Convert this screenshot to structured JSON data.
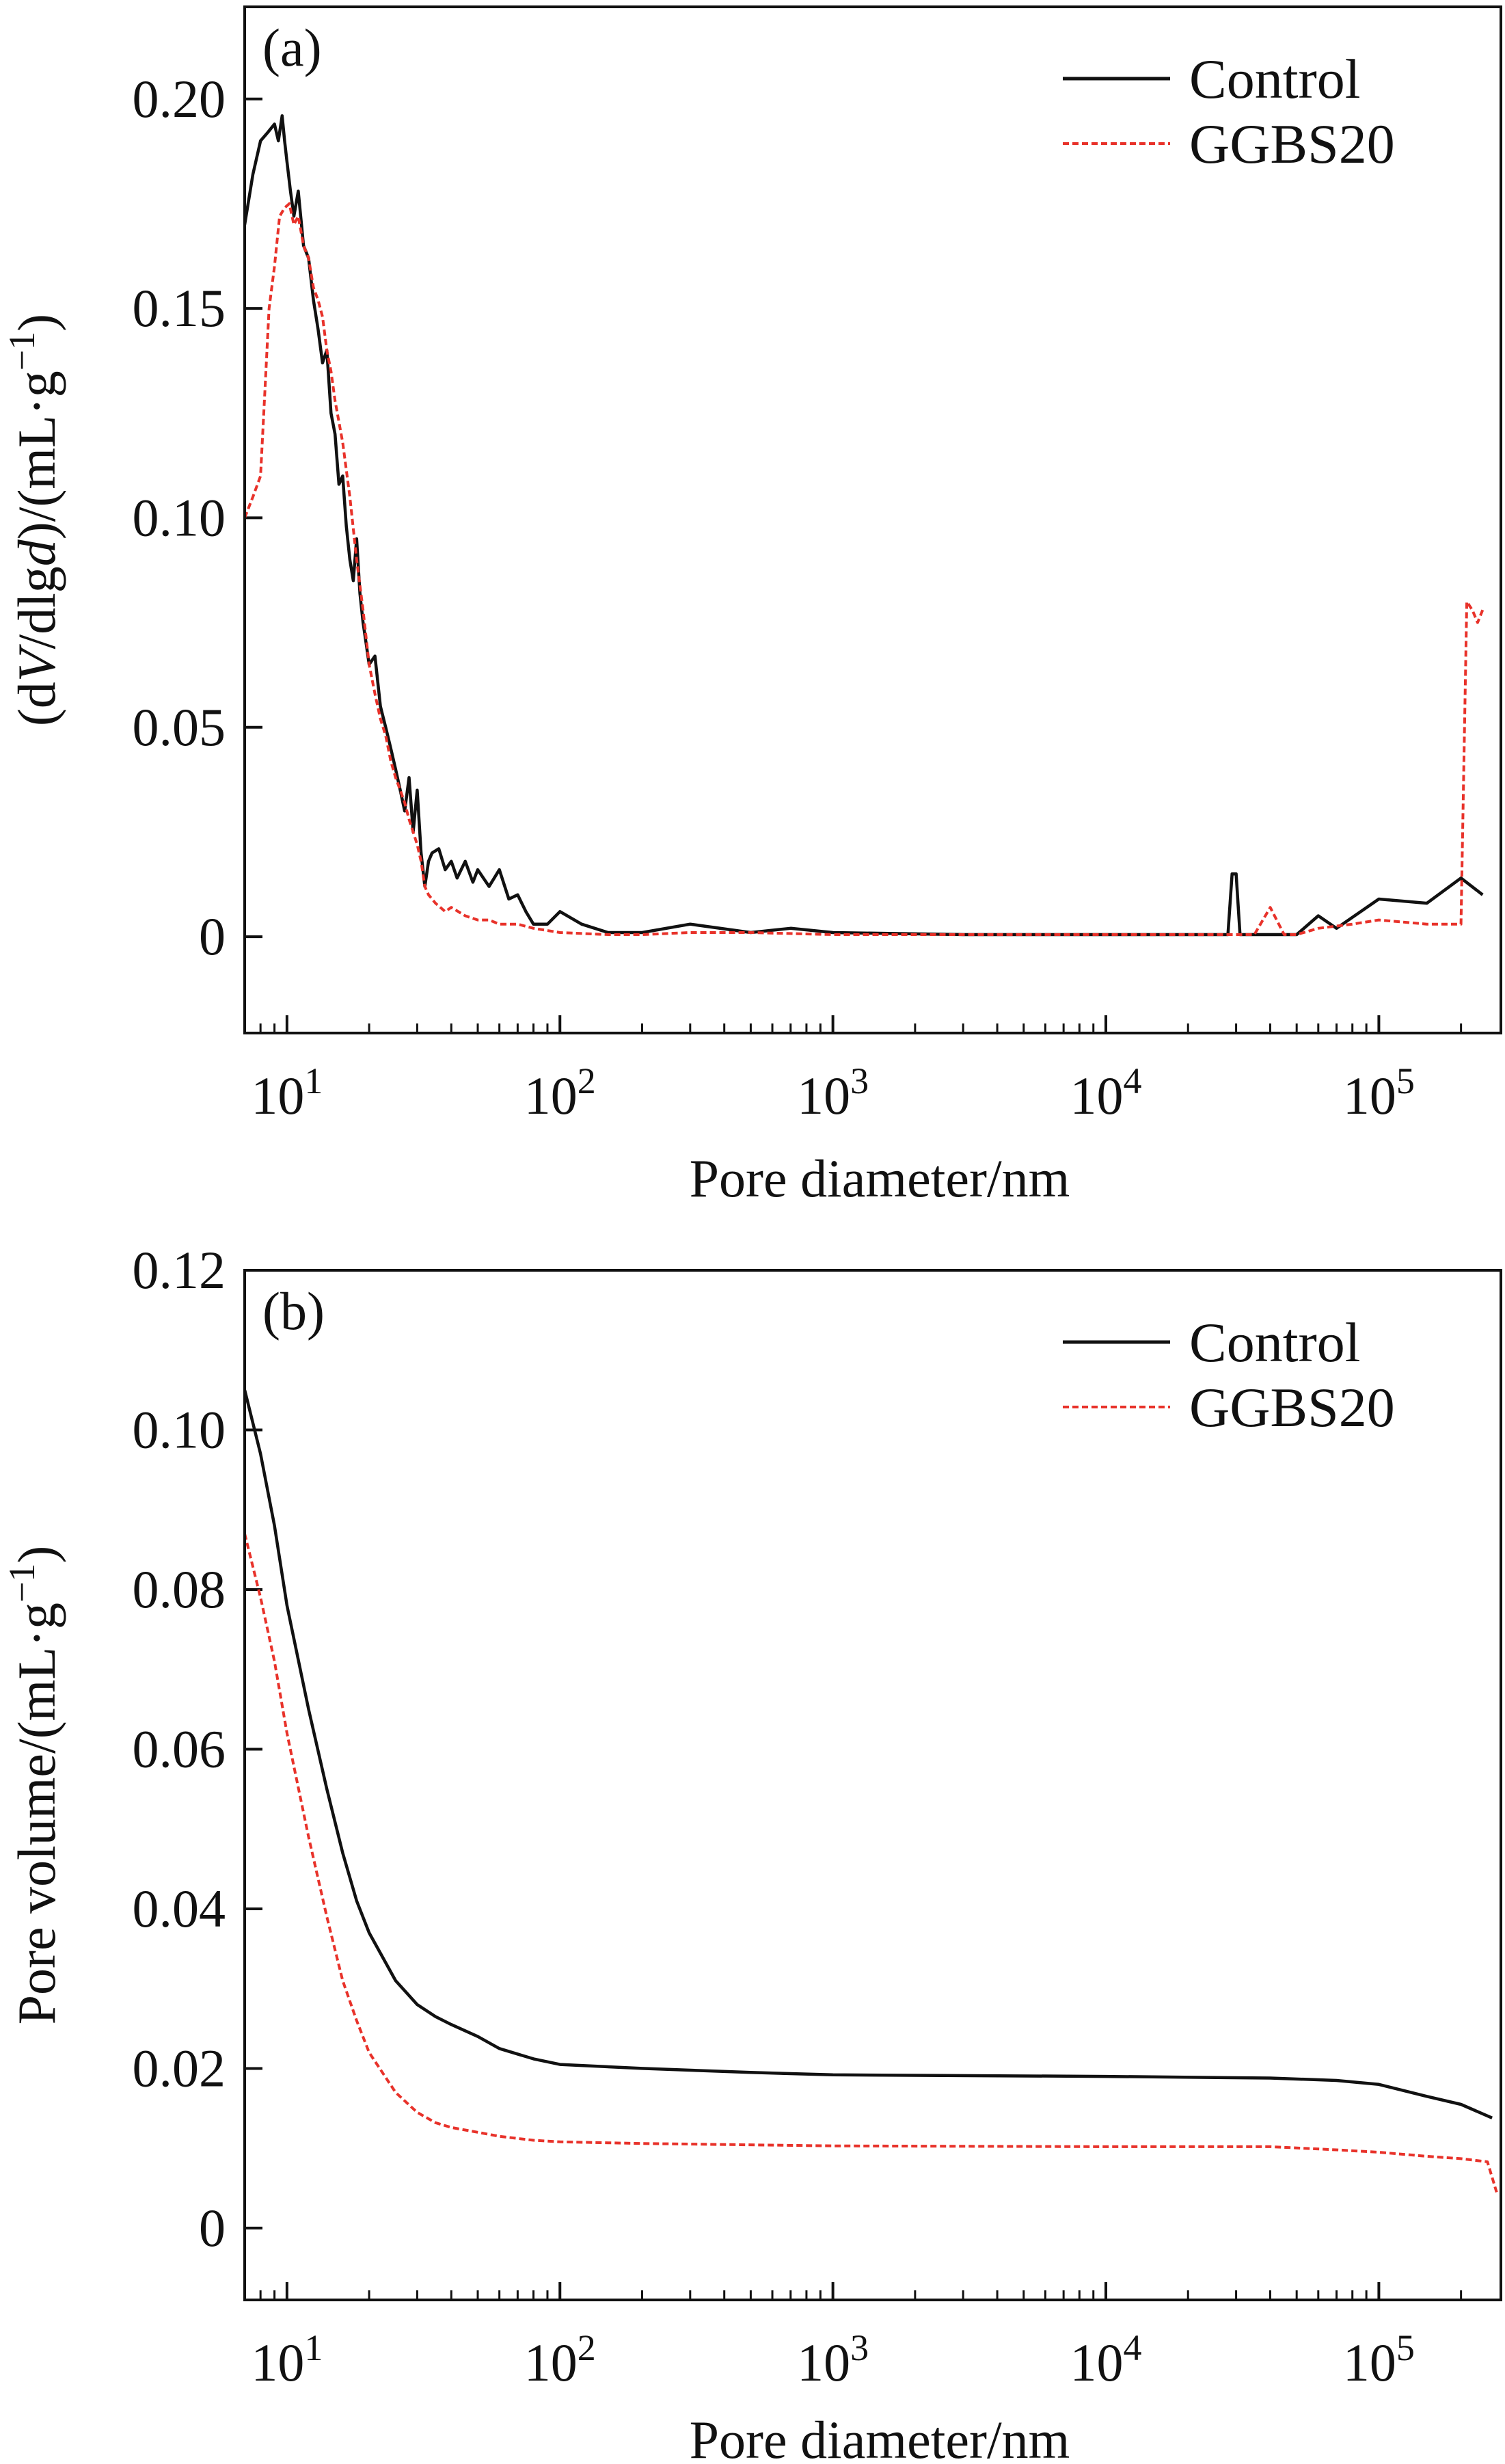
{
  "colors": {
    "control": "#111111",
    "ggbs20": "#e8322a",
    "axis": "#111111",
    "background": "#ffffff"
  },
  "chart_data": [
    {
      "type": "line",
      "panel_label": "(a)",
      "xlabel": "Pore diameter/nm",
      "ylabel": "(dV/dlgd)/(mL·g⁻¹)",
      "ylabel_parts": {
        "open": "(d",
        "v": "V",
        "mid": "/dlg",
        "d": "d",
        "close": ")/(mL·g",
        "sup": "−1",
        "end": ")"
      },
      "x_scale": "log",
      "xlim": [
        7,
        280000
      ],
      "ylim": [
        -0.023,
        0.222
      ],
      "x_ticks": [
        {
          "value": 10,
          "base": "10",
          "exp": "1"
        },
        {
          "value": 100,
          "base": "10",
          "exp": "2"
        },
        {
          "value": 1000,
          "base": "10",
          "exp": "3"
        },
        {
          "value": 10000,
          "base": "10",
          "exp": "4"
        },
        {
          "value": 100000,
          "base": "10",
          "exp": "5"
        }
      ],
      "y_ticks": [
        {
          "value": 0,
          "label": "0"
        },
        {
          "value": 0.05,
          "label": "0.05"
        },
        {
          "value": 0.1,
          "label": "0.10"
        },
        {
          "value": 0.15,
          "label": "0.15"
        },
        {
          "value": 0.2,
          "label": "0.20"
        }
      ],
      "legend_position": "top-right",
      "series": [
        {
          "name": "Control",
          "style": "solid",
          "x": [
            7,
            7.5,
            8,
            8.5,
            9,
            9.3,
            9.6,
            9.8,
            10,
            10.3,
            10.6,
            11,
            11.5,
            12,
            12.5,
            13,
            13.5,
            14,
            14.5,
            15,
            15.5,
            16,
            16.5,
            17,
            17.5,
            18,
            18.5,
            19,
            19.5,
            20,
            21,
            22,
            23,
            24,
            25,
            26,
            27,
            28,
            29,
            30,
            31,
            32,
            33,
            34,
            36,
            38,
            40,
            42,
            45,
            48,
            50,
            55,
            60,
            65,
            70,
            75,
            80,
            90,
            100,
            120,
            150,
            200,
            300,
            500,
            700,
            1000,
            3000,
            10000,
            28000,
            29000,
            30000,
            31000,
            32000,
            50000,
            60000,
            70000,
            100000,
            150000,
            200000,
            240000
          ],
          "y": [
            0.17,
            0.182,
            0.19,
            0.192,
            0.194,
            0.19,
            0.196,
            0.19,
            0.185,
            0.178,
            0.172,
            0.178,
            0.165,
            0.162,
            0.152,
            0.145,
            0.137,
            0.14,
            0.125,
            0.12,
            0.108,
            0.11,
            0.098,
            0.09,
            0.085,
            0.095,
            0.082,
            0.075,
            0.07,
            0.065,
            0.067,
            0.055,
            0.05,
            0.045,
            0.04,
            0.035,
            0.03,
            0.038,
            0.025,
            0.035,
            0.02,
            0.012,
            0.018,
            0.02,
            0.021,
            0.016,
            0.018,
            0.014,
            0.018,
            0.013,
            0.016,
            0.012,
            0.016,
            0.009,
            0.01,
            0.006,
            0.003,
            0.003,
            0.006,
            0.003,
            0.001,
            0.001,
            0.003,
            0.001,
            0.002,
            0.001,
            0.0005,
            0.0005,
            0.0005,
            0.015,
            0.015,
            0.0005,
            0.0005,
            0.0005,
            0.005,
            0.002,
            0.009,
            0.008,
            0.014,
            0.01
          ]
        },
        {
          "name": "GGBS20",
          "style": "dashed",
          "x": [
            7,
            7.5,
            8,
            8.3,
            8.6,
            9,
            9.4,
            9.8,
            10.2,
            10.6,
            11,
            11.5,
            12,
            12.5,
            13,
            13.5,
            14,
            14.5,
            15,
            16,
            17,
            18,
            19,
            20,
            21,
            22,
            23,
            24,
            25,
            26,
            27,
            28,
            29,
            30,
            31,
            32,
            33,
            35,
            38,
            40,
            45,
            50,
            55,
            60,
            70,
            80,
            100,
            150,
            200,
            300,
            500,
            1000,
            3000,
            10000,
            35000,
            40000,
            45000,
            50000,
            60000,
            80000,
            100000,
            150000,
            200000,
            210000,
            220000,
            230000,
            240000
          ],
          "y": [
            0.1,
            0.105,
            0.11,
            0.13,
            0.15,
            0.16,
            0.172,
            0.174,
            0.175,
            0.17,
            0.172,
            0.165,
            0.162,
            0.155,
            0.152,
            0.148,
            0.14,
            0.135,
            0.128,
            0.118,
            0.105,
            0.09,
            0.078,
            0.065,
            0.058,
            0.052,
            0.048,
            0.042,
            0.038,
            0.035,
            0.032,
            0.028,
            0.025,
            0.022,
            0.018,
            0.012,
            0.01,
            0.008,
            0.006,
            0.007,
            0.005,
            0.004,
            0.004,
            0.003,
            0.003,
            0.002,
            0.001,
            0.0005,
            0.0005,
            0.001,
            0.001,
            0.0005,
            0.0005,
            0.0005,
            0.0005,
            0.007,
            0.0005,
            0.0005,
            0.002,
            0.003,
            0.004,
            0.003,
            0.003,
            0.08,
            0.078,
            0.075,
            0.078
          ]
        }
      ]
    },
    {
      "type": "line",
      "panel_label": "(b)",
      "xlabel": "Pore diameter/nm",
      "ylabel": "Pore volume/(mL·g⁻¹)",
      "ylabel_parts": {
        "main": "Pore volume/(mL·g",
        "sup": "−1",
        "end": ")"
      },
      "x_scale": "log",
      "xlim": [
        7,
        280000
      ],
      "ylim": [
        -0.009,
        0.12
      ],
      "x_ticks": [
        {
          "value": 10,
          "base": "10",
          "exp": "1"
        },
        {
          "value": 100,
          "base": "10",
          "exp": "2"
        },
        {
          "value": 1000,
          "base": "10",
          "exp": "3"
        },
        {
          "value": 10000,
          "base": "10",
          "exp": "4"
        },
        {
          "value": 100000,
          "base": "10",
          "exp": "5"
        }
      ],
      "y_ticks": [
        {
          "value": 0,
          "label": "0"
        },
        {
          "value": 0.02,
          "label": "0.02"
        },
        {
          "value": 0.04,
          "label": "0.04"
        },
        {
          "value": 0.06,
          "label": "0.06"
        },
        {
          "value": 0.08,
          "label": "0.08"
        },
        {
          "value": 0.1,
          "label": "0.10"
        },
        {
          "value": 0.12,
          "label": "0.12"
        }
      ],
      "legend_position": "top-right",
      "series": [
        {
          "name": "Control",
          "style": "solid",
          "x": [
            7,
            8,
            9,
            10,
            12,
            14,
            16,
            18,
            20,
            25,
            30,
            35,
            40,
            50,
            60,
            80,
            100,
            200,
            500,
            1000,
            10000,
            40000,
            70000,
            100000,
            150000,
            200000,
            260000
          ],
          "y": [
            0.105,
            0.097,
            0.088,
            0.078,
            0.065,
            0.055,
            0.047,
            0.041,
            0.037,
            0.031,
            0.028,
            0.0265,
            0.0255,
            0.024,
            0.0225,
            0.0212,
            0.0205,
            0.02,
            0.0195,
            0.0192,
            0.019,
            0.0188,
            0.0185,
            0.018,
            0.0165,
            0.0155,
            0.0138
          ]
        },
        {
          "name": "GGBS20",
          "style": "dashed",
          "x": [
            7,
            8,
            9,
            10,
            12,
            14,
            16,
            18,
            20,
            25,
            30,
            35,
            40,
            50,
            60,
            80,
            100,
            200,
            1000,
            10000,
            40000,
            70000,
            100000,
            150000,
            200000,
            250000,
            270000
          ],
          "y": [
            0.087,
            0.079,
            0.071,
            0.062,
            0.049,
            0.039,
            0.031,
            0.026,
            0.022,
            0.017,
            0.0145,
            0.0132,
            0.0126,
            0.012,
            0.0115,
            0.011,
            0.0108,
            0.0106,
            0.0103,
            0.0102,
            0.0102,
            0.0098,
            0.0095,
            0.009,
            0.0087,
            0.0083,
            0.0045
          ]
        }
      ]
    }
  ]
}
